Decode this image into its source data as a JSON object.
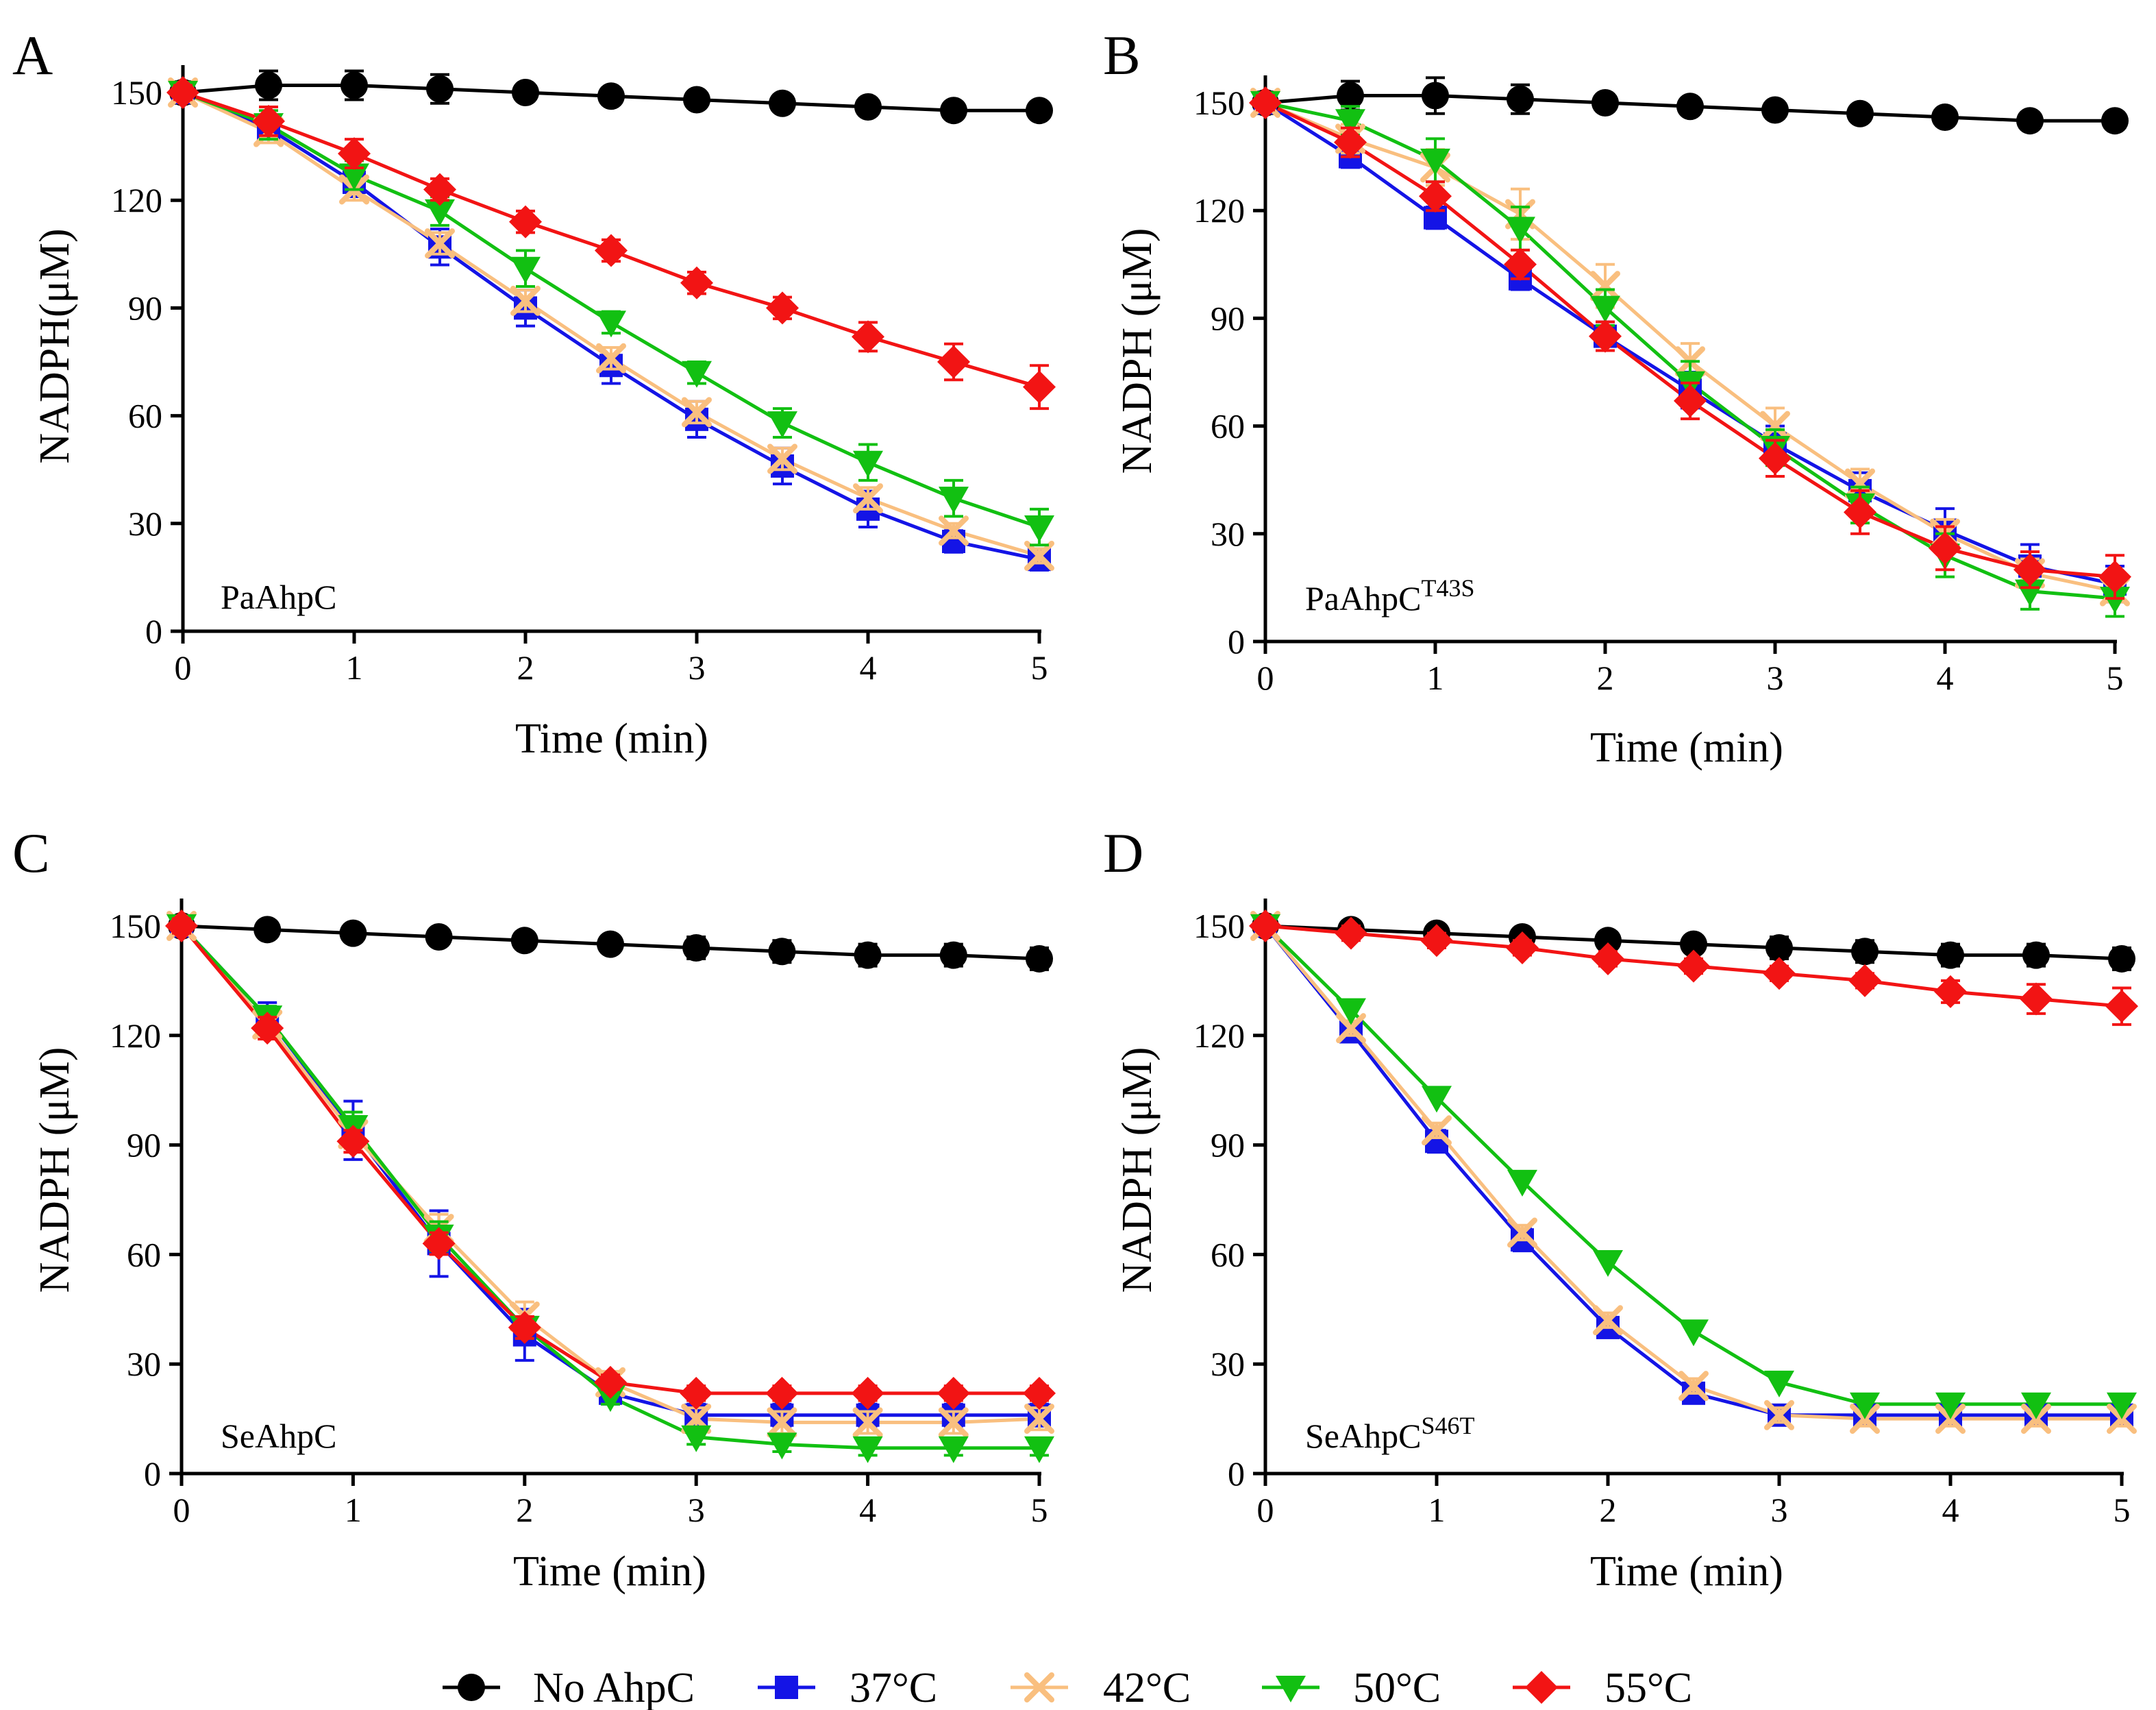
{
  "colors": {
    "No AhpC": "#000000",
    "37°C": "#1414e6",
    "42°C": "#f9bf7f",
    "50°C": "#12c012",
    "55°C": "#f21414"
  },
  "markers": {
    "No AhpC": "circle",
    "37°C": "square",
    "42°C": "x",
    "50°C": "triangle-down",
    "55°C": "diamond"
  },
  "legend": {
    "position": "bottom",
    "items": [
      {
        "name": "No AhpC",
        "marker": "circle"
      },
      {
        "name": "37°C",
        "marker": "square"
      },
      {
        "name": "42°C",
        "marker": "x"
      },
      {
        "name": "50°C",
        "marker": "triangle-down"
      },
      {
        "name": "55°C",
        "marker": "diamond"
      }
    ]
  },
  "chart_data": [
    {
      "panel": "A",
      "type": "line",
      "protein_label": "PaAhpC",
      "protein_sup": "",
      "xlabel": "Time (min)",
      "ylabel": "NADPH(μM)",
      "xlim": [
        0,
        5
      ],
      "ylim": [
        0,
        150
      ],
      "xticks": [
        0,
        1,
        2,
        3,
        4,
        5
      ],
      "yticks": [
        0,
        30,
        60,
        90,
        120,
        150
      ],
      "x": [
        0,
        0.5,
        1,
        1.5,
        2,
        2.5,
        3,
        3.5,
        4,
        4.5,
        5
      ],
      "series": [
        {
          "name": "No AhpC",
          "values": [
            150,
            152,
            152,
            151,
            150,
            149,
            148,
            147,
            146,
            145,
            145
          ],
          "errors": [
            3,
            4,
            4,
            4,
            2,
            2,
            2,
            2,
            2,
            2,
            2
          ]
        },
        {
          "name": "37°C",
          "values": [
            150,
            140,
            125,
            107,
            90,
            74,
            59,
            46,
            34,
            25,
            20
          ],
          "errors": [
            2,
            3,
            4,
            5,
            5,
            5,
            5,
            5,
            5,
            3,
            3
          ]
        },
        {
          "name": "42°C",
          "values": [
            150,
            139,
            123,
            108,
            92,
            76,
            61,
            48,
            37,
            28,
            21
          ],
          "errors": [
            2,
            3,
            3,
            3,
            3,
            3,
            3,
            3,
            3,
            2,
            2
          ]
        },
        {
          "name": "50°C",
          "values": [
            150,
            141,
            127,
            117,
            101,
            86,
            72,
            58,
            47,
            37,
            29
          ],
          "errors": [
            2,
            4,
            4,
            4,
            5,
            3,
            3,
            4,
            5,
            5,
            5
          ]
        },
        {
          "name": "55°C",
          "values": [
            150,
            142,
            133,
            123,
            114,
            106,
            97,
            90,
            82,
            75,
            68
          ],
          "errors": [
            2,
            4,
            4,
            3,
            3,
            3,
            3,
            3,
            4,
            5,
            6
          ]
        }
      ]
    },
    {
      "panel": "B",
      "type": "line",
      "protein_label": "PaAhpC",
      "protein_sup": "T43S",
      "xlabel": "Time (min)",
      "ylabel": "NADPH (μM)",
      "xlim": [
        0,
        5
      ],
      "ylim": [
        0,
        150
      ],
      "xticks": [
        0,
        1,
        2,
        3,
        4,
        5
      ],
      "yticks": [
        0,
        30,
        60,
        90,
        120,
        150
      ],
      "x": [
        0,
        0.5,
        1,
        1.5,
        2,
        2.5,
        3,
        3.5,
        4,
        4.5,
        5
      ],
      "series": [
        {
          "name": "No AhpC",
          "values": [
            150,
            152,
            152,
            151,
            150,
            149,
            148,
            147,
            146,
            145,
            145
          ],
          "errors": [
            3,
            4,
            5,
            4,
            2,
            2,
            2,
            2,
            2,
            2,
            2
          ]
        },
        {
          "name": "37°C",
          "values": [
            150,
            135,
            118,
            101,
            85,
            70,
            55,
            42,
            31,
            21,
            16
          ],
          "errors": [
            2,
            3,
            3,
            3,
            4,
            5,
            5,
            5,
            6,
            6,
            5
          ]
        },
        {
          "name": "42°C",
          "values": [
            150,
            140,
            132,
            119,
            99,
            78,
            60,
            44,
            30,
            19,
            14
          ],
          "errors": [
            2,
            4,
            5,
            7,
            6,
            5,
            5,
            4,
            4,
            4,
            3
          ]
        },
        {
          "name": "50°C",
          "values": [
            150,
            145,
            134,
            115,
            93,
            72,
            54,
            38,
            24,
            14,
            12
          ],
          "errors": [
            2,
            4,
            6,
            6,
            5,
            6,
            5,
            5,
            6,
            5,
            5
          ]
        },
        {
          "name": "55°C",
          "values": [
            150,
            139,
            124,
            105,
            85,
            67,
            51,
            36,
            26,
            20,
            18
          ],
          "errors": [
            2,
            4,
            4,
            4,
            4,
            5,
            5,
            6,
            6,
            5,
            6
          ]
        }
      ]
    },
    {
      "panel": "C",
      "type": "line",
      "protein_label": "SeAhpC",
      "protein_sup": "",
      "xlabel": "Time (min)",
      "ylabel": "NADPH (μM)",
      "xlim": [
        0,
        5
      ],
      "ylim": [
        0,
        150
      ],
      "xticks": [
        0,
        1,
        2,
        3,
        4,
        5
      ],
      "yticks": [
        0,
        30,
        60,
        90,
        120,
        150
      ],
      "x": [
        0,
        0.5,
        1,
        1.5,
        2,
        2.5,
        3,
        3.5,
        4,
        4.5,
        5
      ],
      "series": [
        {
          "name": "No AhpC",
          "values": [
            150,
            149,
            148,
            147,
            146,
            145,
            144,
            143,
            142,
            142,
            141
          ],
          "errors": [
            2,
            2,
            2,
            2,
            2,
            2,
            3,
            3,
            3,
            3,
            3
          ]
        },
        {
          "name": "37°C",
          "values": [
            150,
            125,
            94,
            63,
            38,
            22,
            16,
            16,
            16,
            16,
            16
          ],
          "errors": [
            2,
            4,
            8,
            9,
            7,
            3,
            3,
            3,
            3,
            3,
            3
          ]
        },
        {
          "name": "42°C",
          "values": [
            150,
            123,
            93,
            67,
            43,
            25,
            15,
            14,
            14,
            14,
            15
          ],
          "errors": [
            2,
            3,
            4,
            4,
            4,
            3,
            3,
            3,
            3,
            3,
            3
          ]
        },
        {
          "name": "50°C",
          "values": [
            150,
            125,
            95,
            65,
            40,
            21,
            10,
            8,
            7,
            7,
            7
          ],
          "errors": [
            2,
            3,
            4,
            4,
            3,
            2,
            2,
            2,
            2,
            2,
            2
          ]
        },
        {
          "name": "55°C",
          "values": [
            150,
            122,
            91,
            63,
            40,
            25,
            22,
            22,
            22,
            22,
            22
          ],
          "errors": [
            2,
            3,
            3,
            3,
            3,
            2,
            2,
            2,
            2,
            2,
            2
          ]
        }
      ]
    },
    {
      "panel": "D",
      "type": "line",
      "protein_label": "SeAhpC",
      "protein_sup": "S46T",
      "xlabel": "Time (min)",
      "ylabel": "NADPH (μM)",
      "xlim": [
        0,
        5
      ],
      "ylim": [
        0,
        150
      ],
      "xticks": [
        0,
        1,
        2,
        3,
        4,
        5
      ],
      "yticks": [
        0,
        30,
        60,
        90,
        120,
        150
      ],
      "x": [
        0,
        0.5,
        1,
        1.5,
        2,
        2.5,
        3,
        3.5,
        4,
        4.5,
        5
      ],
      "series": [
        {
          "name": "No AhpC",
          "values": [
            150,
            149,
            148,
            147,
            146,
            145,
            144,
            143,
            142,
            142,
            141
          ],
          "errors": [
            2,
            2,
            2,
            2,
            2,
            2,
            3,
            3,
            3,
            3,
            3
          ]
        },
        {
          "name": "37°C",
          "values": [
            150,
            121,
            91,
            64,
            40,
            22,
            16,
            16,
            16,
            16,
            16
          ],
          "errors": [
            2,
            2,
            3,
            3,
            2,
            2,
            2,
            2,
            2,
            2,
            2
          ]
        },
        {
          "name": "42°C",
          "values": [
            150,
            122,
            94,
            66,
            42,
            24,
            16,
            15,
            15,
            15,
            15
          ],
          "errors": [
            2,
            2,
            2,
            2,
            2,
            2,
            2,
            2,
            2,
            2,
            2
          ]
        },
        {
          "name": "50°C",
          "values": [
            150,
            127,
            103,
            80,
            58,
            39,
            25,
            19,
            19,
            19,
            19
          ],
          "errors": [
            1,
            1,
            1,
            1,
            1,
            1,
            1,
            1,
            1,
            1,
            1
          ]
        },
        {
          "name": "55°C",
          "values": [
            150,
            148,
            146,
            144,
            141,
            139,
            137,
            135,
            132,
            130,
            128
          ],
          "errors": [
            1,
            2,
            2,
            2,
            2,
            2,
            2,
            2,
            3,
            4,
            5
          ]
        }
      ]
    }
  ]
}
